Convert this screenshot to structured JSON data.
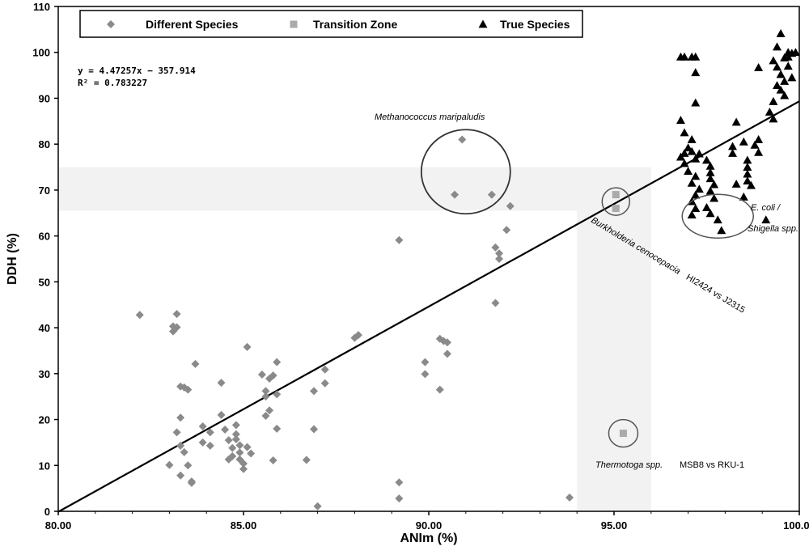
{
  "chart_data": {
    "type": "scatter",
    "xlabel": "ANIm (%)",
    "ylabel": "DDH (%)",
    "xlim": [
      80,
      100
    ],
    "ylim": [
      0,
      110
    ],
    "x_ticks": [
      "80.00",
      "85.00",
      "90.00",
      "95.00",
      "100.00"
    ],
    "y_ticks": [
      "0",
      "10",
      "20",
      "30",
      "40",
      "50",
      "60",
      "70",
      "80",
      "90",
      "100",
      "110"
    ],
    "legend_position": "top",
    "grid": false,
    "regression": {
      "slope": 4.47257,
      "intercept": -357.914,
      "equation": "y = 4.47257x − 357.914",
      "r2_label": "R² = 0.783227"
    },
    "bands": {
      "ddh_range": [
        65.5,
        75
      ],
      "anim_range": [
        94,
        96
      ]
    },
    "series": [
      {
        "name": "Different Species",
        "marker": "diamond",
        "color": "#8a8a8a",
        "points": [
          [
            82.2,
            42.8
          ],
          [
            83.1,
            40.3
          ],
          [
            83.1,
            39.2
          ],
          [
            83.2,
            40.1
          ],
          [
            83.2,
            43.0
          ],
          [
            83.2,
            17.2
          ],
          [
            83.3,
            20.4
          ],
          [
            83.3,
            14.3
          ],
          [
            83.4,
            12.9
          ],
          [
            83.3,
            27.2
          ],
          [
            83.4,
            27.0
          ],
          [
            83.5,
            26.5
          ],
          [
            83.7,
            32.1
          ],
          [
            83.9,
            18.5
          ],
          [
            84.1,
            17.2
          ],
          [
            83.9,
            15.0
          ],
          [
            84.1,
            14.3
          ],
          [
            84.4,
            28.0
          ],
          [
            84.4,
            21.0
          ],
          [
            84.5,
            17.8
          ],
          [
            84.6,
            11.3
          ],
          [
            84.6,
            15.5
          ],
          [
            84.7,
            13.8
          ],
          [
            84.8,
            18.8
          ],
          [
            84.8,
            16.8
          ],
          [
            84.8,
            15.7
          ],
          [
            84.9,
            14.4
          ],
          [
            84.9,
            12.8
          ],
          [
            84.9,
            11.3
          ],
          [
            85.0,
            10.4
          ],
          [
            85.0,
            9.2
          ],
          [
            85.1,
            14.0
          ],
          [
            85.2,
            12.6
          ],
          [
            85.1,
            35.8
          ],
          [
            83.0,
            10.1
          ],
          [
            83.3,
            7.8
          ],
          [
            83.5,
            10.0
          ],
          [
            83.6,
            6.5
          ],
          [
            83.6,
            6.2
          ],
          [
            84.7,
            12.0
          ],
          [
            85.5,
            29.8
          ],
          [
            85.6,
            26.2
          ],
          [
            85.7,
            28.9
          ],
          [
            85.8,
            29.6
          ],
          [
            85.6,
            25.0
          ],
          [
            85.9,
            32.5
          ],
          [
            85.7,
            22.0
          ],
          [
            85.6,
            20.8
          ],
          [
            85.9,
            25.5
          ],
          [
            85.9,
            18.0
          ],
          [
            85.8,
            11.1
          ],
          [
            86.7,
            11.2
          ],
          [
            86.9,
            26.2
          ],
          [
            87.2,
            30.9
          ],
          [
            87.2,
            27.9
          ],
          [
            86.9,
            17.9
          ],
          [
            87.0,
            1.1
          ],
          [
            88.0,
            37.8
          ],
          [
            88.1,
            38.4
          ],
          [
            89.2,
            59.1
          ],
          [
            89.2,
            6.3
          ],
          [
            89.2,
            2.8
          ],
          [
            89.9,
            32.5
          ],
          [
            89.9,
            29.9
          ],
          [
            90.3,
            37.6
          ],
          [
            90.3,
            26.5
          ],
          [
            90.4,
            37.1
          ],
          [
            90.5,
            36.8
          ],
          [
            90.5,
            34.3
          ],
          [
            90.7,
            69.0
          ],
          [
            90.9,
            81.0
          ],
          [
            91.7,
            69.0
          ],
          [
            91.8,
            57.5
          ],
          [
            91.8,
            45.4
          ],
          [
            91.9,
            56.2
          ],
          [
            91.9,
            55.0
          ],
          [
            92.1,
            61.3
          ],
          [
            92.2,
            66.5
          ],
          [
            93.8,
            3.0
          ]
        ]
      },
      {
        "name": "Transition Zone",
        "marker": "square",
        "color": "#aaaaaa",
        "points": [
          [
            95.05,
            69.0
          ],
          [
            95.05,
            66.0
          ],
          [
            95.25,
            17.0
          ]
        ]
      },
      {
        "name": "True Species",
        "marker": "triangle",
        "color": "#000000",
        "points": [
          [
            96.8,
            99.0
          ],
          [
            96.9,
            99.0
          ],
          [
            97.1,
            99.0
          ],
          [
            97.2,
            99.0
          ],
          [
            97.2,
            95.6
          ],
          [
            97.2,
            89.0
          ],
          [
            96.8,
            85.2
          ],
          [
            96.9,
            82.5
          ],
          [
            97.1,
            81.0
          ],
          [
            97.0,
            79.2
          ],
          [
            96.9,
            78.0
          ],
          [
            96.8,
            77.2
          ],
          [
            97.1,
            78.4
          ],
          [
            97.3,
            77.9
          ],
          [
            97.2,
            76.8
          ],
          [
            96.9,
            75.8
          ],
          [
            97.0,
            74.1
          ],
          [
            97.2,
            73.0
          ],
          [
            97.1,
            71.5
          ],
          [
            97.3,
            70.2
          ],
          [
            97.2,
            68.9
          ],
          [
            97.1,
            67.5
          ],
          [
            97.2,
            66.0
          ],
          [
            97.1,
            64.6
          ],
          [
            97.5,
            76.5
          ],
          [
            97.6,
            75.2
          ],
          [
            97.6,
            73.8
          ],
          [
            97.6,
            72.5
          ],
          [
            97.7,
            71.2
          ],
          [
            97.6,
            69.8
          ],
          [
            97.7,
            68.2
          ],
          [
            97.5,
            66.2
          ],
          [
            97.6,
            64.9
          ],
          [
            97.8,
            63.5
          ],
          [
            97.9,
            61.2
          ],
          [
            98.2,
            79.5
          ],
          [
            98.2,
            78.0
          ],
          [
            98.3,
            84.8
          ],
          [
            98.3,
            71.3
          ],
          [
            98.5,
            80.5
          ],
          [
            98.6,
            76.5
          ],
          [
            98.6,
            75.0
          ],
          [
            98.6,
            73.5
          ],
          [
            98.6,
            72.0
          ],
          [
            98.7,
            71.0
          ],
          [
            98.5,
            68.5
          ],
          [
            98.8,
            79.8
          ],
          [
            98.9,
            78.2
          ],
          [
            98.9,
            81.0
          ],
          [
            99.1,
            63.5
          ],
          [
            98.9,
            96.7
          ],
          [
            99.3,
            98.2
          ],
          [
            99.4,
            96.8
          ],
          [
            99.5,
            95.2
          ],
          [
            99.6,
            93.7
          ],
          [
            99.5,
            91.8
          ],
          [
            99.6,
            90.6
          ],
          [
            99.7,
            99.0
          ],
          [
            99.7,
            100.0
          ],
          [
            99.8,
            99.8
          ],
          [
            99.6,
            98.8
          ],
          [
            99.4,
            101.2
          ],
          [
            99.5,
            104.1
          ],
          [
            99.3,
            89.3
          ],
          [
            99.2,
            87.0
          ],
          [
            99.3,
            85.5
          ],
          [
            99.4,
            92.8
          ],
          [
            99.8,
            94.5
          ],
          [
            99.9,
            100.0
          ],
          [
            99.7,
            97.0
          ]
        ]
      }
    ],
    "annotations": [
      {
        "text": "Methanococcus maripaludis",
        "italic": true
      },
      {
        "text": "E. coli /",
        "italic": true
      },
      {
        "text": "Shigella spp.",
        "italic": true
      },
      {
        "text": "Burkholderia cenocepacia",
        "italic": true
      },
      {
        "text": "HI2424 vs J2315",
        "italic": false
      },
      {
        "text": "Thermotoga spp.",
        "italic": true
      },
      {
        "text": "MSB8 vs RKU-1",
        "italic": false
      }
    ]
  }
}
